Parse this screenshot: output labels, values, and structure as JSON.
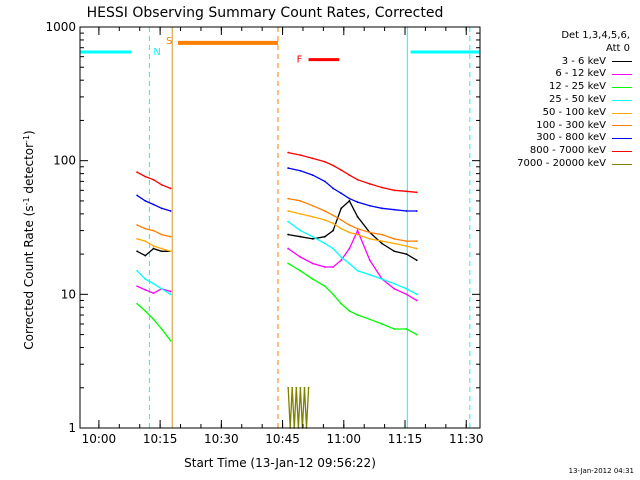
{
  "chart_data": {
    "type": "line",
    "title": "HESSI Observing Summary Count Rates, Corrected",
    "xlabel": "Start Time (13-Jan-12 09:56:22)",
    "ylabel": "Corrected Count Rate (s⁻¹ detector⁻¹)",
    "ylabel_base": "Corrected Count Rate (s",
    "ylabel_mid": " detector",
    "ylabel_end": ")",
    "ylabel_sup": "-1",
    "x_unit": "minutes after 09:56:22",
    "xlim": [
      -1.0,
      97.0
    ],
    "ylim": [
      1,
      1000
    ],
    "y_scale": "log",
    "x_ticks": [
      {
        "x": 3.63,
        "label": "10:00"
      },
      {
        "x": 18.63,
        "label": "10:15"
      },
      {
        "x": 33.63,
        "label": "10:30"
      },
      {
        "x": 48.63,
        "label": "10:45"
      },
      {
        "x": 63.63,
        "label": "11:00"
      },
      {
        "x": 78.63,
        "label": "11:15"
      },
      {
        "x": 93.63,
        "label": "11:30"
      }
    ],
    "y_ticks": [
      {
        "y": 1,
        "label": "1"
      },
      {
        "y": 10,
        "label": "10"
      },
      {
        "y": 100,
        "label": "100"
      },
      {
        "y": 1000,
        "label": "1000"
      }
    ],
    "legend_title": [
      "Det 1,3,4,5,6,",
      "Att 0"
    ],
    "legend_position": "top-right",
    "series": [
      {
        "name": "3 - 6 keV",
        "color": "#000000",
        "segments": [
          {
            "x": [
              13.0,
              15.0,
              17.0,
              19.0,
              21.2
            ],
            "y": [
              21,
              19.5,
              22,
              21,
              21
            ]
          },
          {
            "x": [
              50.0,
              53.0,
              56.0,
              59.0,
              61.0,
              63.0,
              65.0,
              67.0,
              70.0,
              73.0,
              76.0,
              79.0,
              81.5
            ],
            "y": [
              28,
              27,
              26,
              27,
              30,
              44,
              50,
              38,
              29,
              24,
              21,
              20,
              18
            ]
          }
        ]
      },
      {
        "name": "6 - 12 keV",
        "color": "#ff00ff",
        "segments": [
          {
            "x": [
              13.0,
              15.0,
              17.0,
              19.0,
              21.2
            ],
            "y": [
              11.5,
              10.8,
              10.2,
              11,
              10.5
            ]
          },
          {
            "x": [
              50.0,
              53.0,
              56.0,
              59.0,
              61.0,
              63.0,
              65.0,
              67.0,
              70.0,
              73.0,
              76.0,
              79.0,
              81.5
            ],
            "y": [
              22,
              19,
              17,
              16,
              16,
              18,
              22,
              30,
              18,
              13,
              11,
              10,
              9
            ]
          }
        ]
      },
      {
        "name": "12 - 25 keV",
        "color": "#00ff00",
        "segments": [
          {
            "x": [
              13.0,
              15.0,
              17.0,
              19.0,
              21.2
            ],
            "y": [
              8.5,
              7.5,
              6.5,
              5.5,
              4.5
            ]
          },
          {
            "x": [
              50.0,
              53.0,
              56.0,
              59.0,
              61.0,
              63.0,
              65.0,
              67.0,
              70.0,
              73.0,
              76.0,
              79.0,
              81.5
            ],
            "y": [
              17,
              15,
              13,
              11.5,
              10,
              8.5,
              7.5,
              7,
              6.5,
              6,
              5.5,
              5.5,
              5
            ]
          }
        ]
      },
      {
        "name": "25 - 50 keV",
        "color": "#00ffff",
        "segments": [
          {
            "x": [
              13.0,
              15.0,
              17.0,
              19.0,
              21.2
            ],
            "y": [
              15,
              13,
              12,
              11,
              10
            ]
          },
          {
            "x": [
              50.0,
              53.0,
              56.0,
              59.0,
              61.0,
              63.0,
              65.0,
              67.0,
              70.0,
              73.0,
              76.0,
              79.0,
              81.5
            ],
            "y": [
              35,
              30,
              27,
              24,
              22,
              19,
              17,
              15,
              14,
              13,
              12,
              11,
              10
            ]
          }
        ]
      },
      {
        "name": "50 - 100 keV",
        "color": "#ffaa00",
        "segments": [
          {
            "x": [
              13.0,
              15.0,
              17.0,
              19.0,
              21.2
            ],
            "y": [
              26,
              25,
              23,
              22,
              21
            ]
          },
          {
            "x": [
              50.0,
              53.0,
              56.0,
              59.0,
              61.0,
              63.0,
              65.0,
              67.0,
              70.0,
              73.0,
              76.0,
              79.0,
              81.5
            ],
            "y": [
              42,
              40,
              38,
              36,
              34,
              31,
              29,
              28,
              26,
              25,
              24,
              23,
              22
            ]
          }
        ]
      },
      {
        "name": "100 - 300 keV",
        "color": "#ff7f00",
        "segments": [
          {
            "x": [
              13.0,
              15.0,
              17.0,
              19.0,
              21.2
            ],
            "y": [
              33,
              31,
              30,
              28,
              27
            ]
          },
          {
            "x": [
              50.0,
              53.0,
              56.0,
              59.0,
              61.0,
              63.0,
              65.0,
              67.0,
              70.0,
              73.0,
              76.0,
              79.0,
              81.5
            ],
            "y": [
              52,
              50,
              46,
              42,
              39,
              36,
              33,
              31,
              29,
              28,
              26,
              25,
              25
            ]
          }
        ]
      },
      {
        "name": "300 - 800 keV",
        "color": "#0000ff",
        "segments": [
          {
            "x": [
              13.0,
              15.0,
              17.0,
              19.0,
              21.2
            ],
            "y": [
              55,
              50,
              47,
              44,
              42
            ]
          },
          {
            "x": [
              50.0,
              53.0,
              56.0,
              59.0,
              61.0,
              63.0,
              65.0,
              67.0,
              70.0,
              73.0,
              76.0,
              79.0,
              81.5
            ],
            "y": [
              88,
              84,
              78,
              70,
              62,
              57,
              52,
              49,
              46,
              44,
              43,
              42,
              42
            ]
          }
        ]
      },
      {
        "name": "800 - 7000 keV",
        "color": "#ff0000",
        "segments": [
          {
            "x": [
              13.0,
              15.0,
              17.0,
              19.0,
              21.2
            ],
            "y": [
              82,
              76,
              72,
              66,
              62
            ]
          },
          {
            "x": [
              50.0,
              53.0,
              56.0,
              59.0,
              61.0,
              63.0,
              65.0,
              67.0,
              70.0,
              73.0,
              76.0,
              79.0,
              81.5
            ],
            "y": [
              115,
              110,
              104,
              98,
              92,
              85,
              78,
              72,
              67,
              63,
              60,
              59,
              58
            ]
          }
        ]
      },
      {
        "name": "7000 - 20000 keV",
        "color": "#808000",
        "segments": [
          {
            "x": [
              50.0,
              50.5,
              51.0,
              51.5,
              52.0,
              52.5,
              53.0,
              53.5,
              54.0,
              54.5,
              55.0
            ],
            "y": [
              2,
              1,
              2,
              1,
              2,
              1,
              2,
              1,
              2,
              1,
              2
            ]
          }
        ]
      }
    ],
    "annotations": {
      "night_label": "N",
      "saa_label": "S",
      "flare_label": "F",
      "night_color": "#00ffff",
      "saa_color": "#ff7f00",
      "flare_color": "#ff0000",
      "attenuator_color": "#cc9933",
      "night_bars": [
        {
          "x0": -1.0,
          "x1": 11.5,
          "y": 650
        },
        {
          "x0": 80.0,
          "x1": 97.0,
          "y": 650
        }
      ],
      "saa_bars": [
        {
          "x0": 23.0,
          "x1": 47.5,
          "y": 760
        }
      ],
      "flare_bars": [
        {
          "x0": 55.0,
          "x1": 62.5,
          "y": 570
        }
      ],
      "night_lines_dashed": [
        16.0,
        94.5
      ],
      "night_lines_solid": [
        79.2
      ],
      "saa_lines_dashed": [
        47.5
      ],
      "attenuator_lines": [
        21.6
      ]
    }
  },
  "timestamp": "13-Jan-2012 04:31"
}
